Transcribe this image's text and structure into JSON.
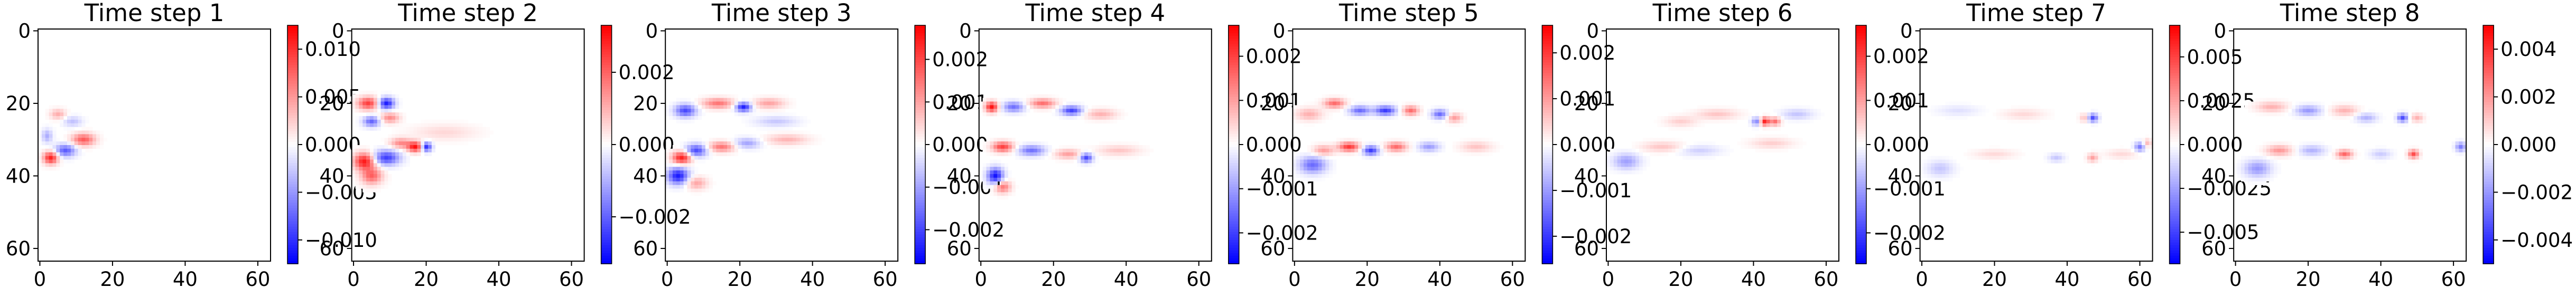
{
  "chart_data": [
    {
      "type": "heatmap",
      "title": "Time step 1",
      "x_ticks": [
        0,
        20,
        40,
        60
      ],
      "y_ticks": [
        0,
        20,
        40,
        60
      ],
      "xlim": [
        0,
        64
      ],
      "ylim": [
        64,
        0
      ],
      "colormap": "bwr",
      "colorbar_ticks": [
        0.01,
        0.005,
        0.0,
        -0.005,
        -0.01
      ],
      "colorbar_range": [
        -0.0125,
        0.0125
      ],
      "features": [
        {
          "x": 12,
          "y": 30,
          "value": 0.008,
          "sx": 2.2,
          "sy": 1.2
        },
        {
          "x": 3,
          "y": 35,
          "value": 0.011,
          "sx": 1.4,
          "sy": 1.2
        },
        {
          "x": 7,
          "y": 33,
          "value": -0.008,
          "sx": 2.0,
          "sy": 1.2
        },
        {
          "x": 5,
          "y": 23,
          "value": 0.004,
          "sx": 1.5,
          "sy": 1.0
        },
        {
          "x": 9,
          "y": 25,
          "value": -0.003,
          "sx": 1.8,
          "sy": 1.0
        },
        {
          "x": 2,
          "y": 29,
          "value": -0.004,
          "sx": 1.0,
          "sy": 1.3
        }
      ]
    },
    {
      "type": "heatmap",
      "title": "Time step 2",
      "x_ticks": [
        0,
        20,
        40,
        60
      ],
      "y_ticks": [
        0,
        20,
        40,
        60
      ],
      "xlim": [
        0,
        64
      ],
      "ylim": [
        64,
        0
      ],
      "colormap": "bwr",
      "colorbar_ticks": [
        0.002,
        0.0,
        -0.002
      ],
      "colorbar_range": [
        -0.0033,
        0.0033
      ],
      "features": [
        {
          "x": 4,
          "y": 20,
          "value": 0.0025,
          "sx": 2.0,
          "sy": 1.2
        },
        {
          "x": 9,
          "y": 20,
          "value": -0.003,
          "sx": 1.5,
          "sy": 1.1
        },
        {
          "x": 5,
          "y": 25,
          "value": -0.002,
          "sx": 1.6,
          "sy": 1.0
        },
        {
          "x": 10,
          "y": 24,
          "value": 0.0015,
          "sx": 1.8,
          "sy": 1.0
        },
        {
          "x": 17,
          "y": 32,
          "value": 0.003,
          "sx": 1.5,
          "sy": 1.0
        },
        {
          "x": 20,
          "y": 32,
          "value": -0.003,
          "sx": 1.0,
          "sy": 0.9
        },
        {
          "x": 3,
          "y": 36,
          "value": 0.003,
          "sx": 2.0,
          "sy": 1.6
        },
        {
          "x": 9,
          "y": 35,
          "value": -0.0025,
          "sx": 2.5,
          "sy": 1.4
        },
        {
          "x": 5,
          "y": 40,
          "value": 0.002,
          "sx": 2.0,
          "sy": 1.6
        },
        {
          "x": 13,
          "y": 31,
          "value": 0.0015,
          "sx": 2.0,
          "sy": 1.0
        },
        {
          "x": 25,
          "y": 28,
          "value": 0.0005,
          "sx": 6.0,
          "sy": 1.5
        }
      ]
    },
    {
      "type": "heatmap",
      "title": "Time step 3",
      "x_ticks": [
        0,
        20,
        40,
        60
      ],
      "y_ticks": [
        0,
        20,
        40,
        60
      ],
      "xlim": [
        0,
        64
      ],
      "ylim": [
        64,
        0
      ],
      "colormap": "bwr",
      "colorbar_ticks": [
        0.002,
        0.001,
        0.0,
        -0.001,
        -0.002
      ],
      "colorbar_range": [
        -0.0028,
        0.0028
      ],
      "features": [
        {
          "x": 5,
          "y": 22,
          "value": -0.002,
          "sx": 2.0,
          "sy": 1.2
        },
        {
          "x": 14,
          "y": 20,
          "value": 0.0015,
          "sx": 3.0,
          "sy": 1.0
        },
        {
          "x": 21,
          "y": 21,
          "value": -0.0025,
          "sx": 1.5,
          "sy": 0.9
        },
        {
          "x": 28,
          "y": 20,
          "value": 0.001,
          "sx": 3.0,
          "sy": 1.0
        },
        {
          "x": 4,
          "y": 35,
          "value": 0.0025,
          "sx": 1.8,
          "sy": 1.2
        },
        {
          "x": 8,
          "y": 33,
          "value": -0.002,
          "sx": 2.0,
          "sy": 1.2
        },
        {
          "x": 15,
          "y": 32,
          "value": 0.0015,
          "sx": 2.5,
          "sy": 1.0
        },
        {
          "x": 22,
          "y": 31,
          "value": -0.001,
          "sx": 2.5,
          "sy": 1.0
        },
        {
          "x": 3,
          "y": 40,
          "value": -0.0025,
          "sx": 2.0,
          "sy": 1.6
        },
        {
          "x": 8,
          "y": 42,
          "value": 0.001,
          "sx": 2.0,
          "sy": 1.2
        },
        {
          "x": 33,
          "y": 30,
          "value": 0.0008,
          "sx": 4.0,
          "sy": 1.0
        },
        {
          "x": 30,
          "y": 25,
          "value": -0.0006,
          "sx": 4.0,
          "sy": 1.0
        }
      ]
    },
    {
      "type": "heatmap",
      "title": "Time step 4",
      "x_ticks": [
        0,
        20,
        40,
        60
      ],
      "y_ticks": [
        0,
        20,
        40,
        60
      ],
      "xlim": [
        0,
        64
      ],
      "ylim": [
        64,
        0
      ],
      "colormap": "bwr",
      "colorbar_ticks": [
        0.002,
        0.001,
        0.0,
        -0.001,
        -0.002
      ],
      "colorbar_range": [
        -0.0027,
        0.0027
      ],
      "features": [
        {
          "x": 3,
          "y": 21,
          "value": 0.0025,
          "sx": 1.2,
          "sy": 1.0
        },
        {
          "x": 9,
          "y": 21,
          "value": -0.0015,
          "sx": 2.0,
          "sy": 1.0
        },
        {
          "x": 17,
          "y": 20,
          "value": 0.0015,
          "sx": 2.5,
          "sy": 0.9
        },
        {
          "x": 25,
          "y": 22,
          "value": -0.002,
          "sx": 2.0,
          "sy": 0.9
        },
        {
          "x": 33,
          "y": 23,
          "value": 0.0008,
          "sx": 3.0,
          "sy": 1.0
        },
        {
          "x": 6,
          "y": 32,
          "value": 0.002,
          "sx": 2.0,
          "sy": 1.0
        },
        {
          "x": 14,
          "y": 33,
          "value": -0.0015,
          "sx": 2.5,
          "sy": 1.0
        },
        {
          "x": 24,
          "y": 34,
          "value": 0.001,
          "sx": 2.5,
          "sy": 0.9
        },
        {
          "x": 29,
          "y": 35,
          "value": -0.002,
          "sx": 1.2,
          "sy": 0.9
        },
        {
          "x": 4,
          "y": 40,
          "value": -0.0025,
          "sx": 1.5,
          "sy": 1.5
        },
        {
          "x": 6,
          "y": 43,
          "value": 0.0015,
          "sx": 1.5,
          "sy": 1.2
        },
        {
          "x": 38,
          "y": 33,
          "value": 0.0006,
          "sx": 4.0,
          "sy": 1.0
        }
      ]
    },
    {
      "type": "heatmap",
      "title": "Time step 5",
      "x_ticks": [
        0,
        20,
        40,
        60
      ],
      "y_ticks": [
        0,
        20,
        40,
        60
      ],
      "xlim": [
        0,
        64
      ],
      "ylim": [
        64,
        0
      ],
      "colormap": "bwr",
      "colorbar_ticks": [
        0.002,
        0.001,
        0.0,
        -0.001,
        -0.002
      ],
      "colorbar_range": [
        -0.0026,
        0.0026
      ],
      "features": [
        {
          "x": 4,
          "y": 23,
          "value": 0.0008,
          "sx": 2.5,
          "sy": 1.2
        },
        {
          "x": 11,
          "y": 20,
          "value": 0.0015,
          "sx": 2.0,
          "sy": 0.9
        },
        {
          "x": 18,
          "y": 22,
          "value": -0.0015,
          "sx": 2.0,
          "sy": 0.9
        },
        {
          "x": 25,
          "y": 22,
          "value": -0.002,
          "sx": 2.0,
          "sy": 0.9
        },
        {
          "x": 32,
          "y": 22,
          "value": 0.0015,
          "sx": 1.5,
          "sy": 0.9
        },
        {
          "x": 40,
          "y": 23,
          "value": -0.0015,
          "sx": 1.5,
          "sy": 0.9
        },
        {
          "x": 44,
          "y": 24,
          "value": 0.001,
          "sx": 1.5,
          "sy": 0.9
        },
        {
          "x": 15,
          "y": 32,
          "value": 0.002,
          "sx": 2.0,
          "sy": 0.9
        },
        {
          "x": 21,
          "y": 33,
          "value": -0.002,
          "sx": 1.5,
          "sy": 0.9
        },
        {
          "x": 28,
          "y": 32,
          "value": 0.0015,
          "sx": 2.0,
          "sy": 0.9
        },
        {
          "x": 37,
          "y": 32,
          "value": -0.001,
          "sx": 2.0,
          "sy": 0.9
        },
        {
          "x": 5,
          "y": 37,
          "value": -0.0015,
          "sx": 2.5,
          "sy": 1.6
        },
        {
          "x": 8,
          "y": 33,
          "value": 0.001,
          "sx": 2.0,
          "sy": 1.0
        },
        {
          "x": 50,
          "y": 32,
          "value": 0.0006,
          "sx": 3.0,
          "sy": 1.0
        }
      ]
    },
    {
      "type": "heatmap",
      "title": "Time step 6",
      "x_ticks": [
        0,
        20,
        40,
        60
      ],
      "y_ticks": [
        0,
        20,
        40,
        60
      ],
      "xlim": [
        0,
        64
      ],
      "ylim": [
        64,
        0
      ],
      "colormap": "bwr",
      "colorbar_ticks": [
        0.002,
        0.001,
        0.0,
        -0.001,
        -0.002
      ],
      "colorbar_range": [
        -0.0027,
        0.0027
      ],
      "features": [
        {
          "x": 43,
          "y": 25,
          "value": 0.0025,
          "sx": 1.0,
          "sy": 0.8
        },
        {
          "x": 41,
          "y": 25,
          "value": -0.0015,
          "sx": 1.0,
          "sy": 0.8
        },
        {
          "x": 46,
          "y": 25,
          "value": 0.0015,
          "sx": 1.0,
          "sy": 0.8
        },
        {
          "x": 30,
          "y": 23,
          "value": 0.0006,
          "sx": 4.0,
          "sy": 1.0
        },
        {
          "x": 52,
          "y": 23,
          "value": -0.0006,
          "sx": 3.0,
          "sy": 1.0
        },
        {
          "x": 15,
          "y": 32,
          "value": 0.0006,
          "sx": 4.0,
          "sy": 1.0
        },
        {
          "x": 5,
          "y": 36,
          "value": -0.001,
          "sx": 2.5,
          "sy": 1.5
        },
        {
          "x": 25,
          "y": 33,
          "value": -0.0005,
          "sx": 4.0,
          "sy": 1.0
        },
        {
          "x": 45,
          "y": 31,
          "value": 0.0005,
          "sx": 4.0,
          "sy": 1.0
        },
        {
          "x": 20,
          "y": 25,
          "value": 0.0005,
          "sx": 3.0,
          "sy": 1.0
        }
      ]
    },
    {
      "type": "heatmap",
      "title": "Time step 7",
      "x_ticks": [
        0,
        20,
        40,
        60
      ],
      "y_ticks": [
        0,
        20,
        40,
        60
      ],
      "xlim": [
        0,
        64
      ],
      "ylim": [
        64,
        0
      ],
      "colormap": "bwr",
      "colorbar_ticks": [
        0.005,
        0.0025,
        0.0,
        -0.0025,
        -0.005
      ],
      "colorbar_range": [
        -0.0068,
        0.0068
      ],
      "features": [
        {
          "x": 47,
          "y": 24,
          "value": -0.005,
          "sx": 1.0,
          "sy": 0.8
        },
        {
          "x": 45,
          "y": 24,
          "value": 0.002,
          "sx": 1.0,
          "sy": 0.8
        },
        {
          "x": 60,
          "y": 32,
          "value": -0.0035,
          "sx": 1.0,
          "sy": 0.9
        },
        {
          "x": 62,
          "y": 31,
          "value": 0.002,
          "sx": 0.8,
          "sy": 0.8
        },
        {
          "x": 47,
          "y": 35,
          "value": 0.0025,
          "sx": 1.0,
          "sy": 0.8
        },
        {
          "x": 37,
          "y": 35,
          "value": -0.0015,
          "sx": 1.5,
          "sy": 0.8
        },
        {
          "x": 28,
          "y": 23,
          "value": 0.001,
          "sx": 4.0,
          "sy": 1.0
        },
        {
          "x": 10,
          "y": 22,
          "value": -0.0008,
          "sx": 4.0,
          "sy": 1.0
        },
        {
          "x": 20,
          "y": 34,
          "value": 0.001,
          "sx": 4.0,
          "sy": 0.9
        },
        {
          "x": 5,
          "y": 38,
          "value": -0.0015,
          "sx": 2.5,
          "sy": 1.5
        },
        {
          "x": 55,
          "y": 34,
          "value": 0.001,
          "sx": 3.0,
          "sy": 0.9
        }
      ]
    },
    {
      "type": "heatmap",
      "title": "Time step 8",
      "x_ticks": [
        0,
        20,
        40,
        60
      ],
      "y_ticks": [
        0,
        20,
        40,
        60
      ],
      "xlim": [
        0,
        64
      ],
      "ylim": [
        64,
        0
      ],
      "colormap": "bwr",
      "colorbar_ticks": [
        0.004,
        0.002,
        0.0,
        -0.002,
        -0.004
      ],
      "colorbar_range": [
        -0.005,
        0.005
      ],
      "features": [
        {
          "x": 10,
          "y": 21,
          "value": 0.0015,
          "sx": 3.0,
          "sy": 1.0
        },
        {
          "x": 20,
          "y": 22,
          "value": -0.002,
          "sx": 2.5,
          "sy": 1.0
        },
        {
          "x": 30,
          "y": 22,
          "value": 0.0015,
          "sx": 2.5,
          "sy": 1.0
        },
        {
          "x": 36,
          "y": 24,
          "value": -0.0015,
          "sx": 2.0,
          "sy": 0.9
        },
        {
          "x": 46,
          "y": 24,
          "value": -0.0035,
          "sx": 1.0,
          "sy": 0.8
        },
        {
          "x": 50,
          "y": 24,
          "value": 0.0015,
          "sx": 1.2,
          "sy": 0.8
        },
        {
          "x": 12,
          "y": 33,
          "value": 0.002,
          "sx": 2.5,
          "sy": 1.0
        },
        {
          "x": 21,
          "y": 33,
          "value": -0.0015,
          "sx": 2.5,
          "sy": 1.0
        },
        {
          "x": 30,
          "y": 34,
          "value": 0.003,
          "sx": 1.5,
          "sy": 0.8
        },
        {
          "x": 49,
          "y": 34,
          "value": 0.0035,
          "sx": 1.0,
          "sy": 0.8
        },
        {
          "x": 62,
          "y": 32,
          "value": -0.0025,
          "sx": 1.0,
          "sy": 0.9
        },
        {
          "x": 6,
          "y": 38,
          "value": -0.002,
          "sx": 2.5,
          "sy": 1.6
        },
        {
          "x": 40,
          "y": 34,
          "value": -0.001,
          "sx": 2.0,
          "sy": 0.9
        }
      ]
    }
  ]
}
